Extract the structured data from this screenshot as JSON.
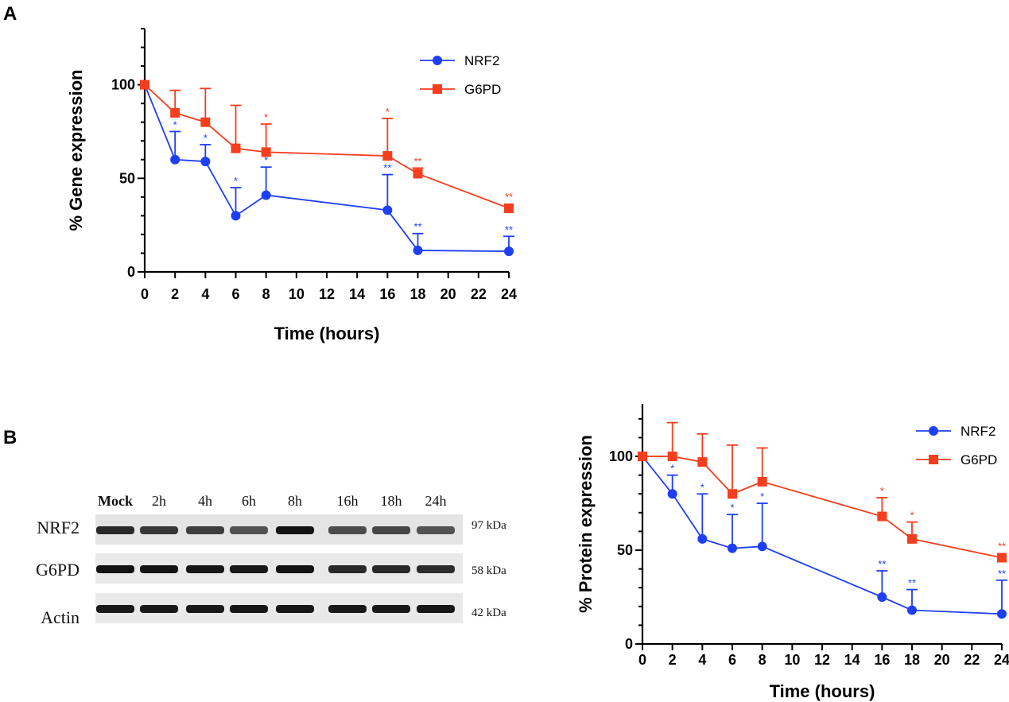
{
  "panels": {
    "a": "A",
    "b": "B"
  },
  "chart_data": [
    {
      "type": "line",
      "xlabel": "Time (hours)",
      "ylabel": "% Gene expression",
      "xlim": [
        0,
        24
      ],
      "ylim": [
        0,
        130
      ],
      "xticks": [
        0,
        2,
        4,
        6,
        8,
        10,
        12,
        14,
        16,
        18,
        20,
        22,
        24
      ],
      "yticks_major": [
        0,
        50,
        100
      ],
      "legend_position": "top-right",
      "series": [
        {
          "name": "NRF2",
          "color": "#1f3ff5",
          "marker": "circle",
          "x": [
            0,
            2,
            4,
            6,
            8,
            16,
            18,
            24
          ],
          "values": [
            100,
            60,
            59,
            30,
            41,
            33,
            11.5,
            11
          ],
          "err": [
            0,
            15,
            9,
            15,
            15,
            19,
            9,
            8
          ],
          "sig": [
            "",
            "*",
            "*",
            "*",
            "*",
            "**",
            "**",
            "**"
          ]
        },
        {
          "name": "G6PD",
          "color": "#f53e1e",
          "marker": "square",
          "x": [
            0,
            2,
            4,
            6,
            8,
            16,
            18,
            24
          ],
          "values": [
            100,
            85,
            80,
            66,
            64,
            62,
            52.5,
            34
          ],
          "err": [
            0,
            12,
            18,
            23,
            15,
            20,
            3,
            0
          ],
          "sig": [
            "",
            "",
            "",
            "",
            "*",
            "*",
            "**",
            "**"
          ]
        }
      ]
    },
    {
      "type": "line",
      "xlabel": "Time (hours)",
      "ylabel": "% Protein expression",
      "xlim": [
        0,
        24
      ],
      "ylim": [
        0,
        128
      ],
      "xticks": [
        0,
        2,
        4,
        6,
        8,
        10,
        12,
        14,
        16,
        18,
        20,
        22,
        24
      ],
      "yticks_major": [
        0,
        50,
        100
      ],
      "legend_position": "top-right",
      "series": [
        {
          "name": "NRF2",
          "color": "#1f3ff5",
          "marker": "circle",
          "x": [
            0,
            2,
            4,
            6,
            8,
            16,
            18,
            24
          ],
          "values": [
            100,
            80,
            56,
            51,
            52,
            25,
            18,
            16
          ],
          "err": [
            0,
            10,
            24,
            18,
            23,
            14,
            11,
            18
          ],
          "sig": [
            "",
            "*",
            "*",
            "*",
            "*",
            "**",
            "**",
            "**"
          ]
        },
        {
          "name": "G6PD",
          "color": "#f53e1e",
          "marker": "square",
          "x": [
            0,
            2,
            4,
            6,
            8,
            16,
            18,
            24
          ],
          "values": [
            100,
            100,
            97,
            80,
            86.5,
            68,
            56,
            46
          ],
          "err": [
            0,
            18,
            15,
            26,
            18,
            10,
            9,
            0
          ],
          "sig": [
            "",
            "",
            "",
            "",
            "",
            "*",
            "*",
            "**"
          ]
        }
      ]
    }
  ],
  "blot": {
    "lanes": [
      "Mock",
      "2h",
      "4h",
      "6h",
      "8h",
      "16h",
      "18h",
      "24h"
    ],
    "rows": [
      {
        "label": "NRF2",
        "kda": "97 kDa",
        "intensity": [
          0.8,
          0.7,
          0.65,
          0.5,
          0.95,
          0.55,
          0.6,
          0.5
        ]
      },
      {
        "label": "G6PD",
        "kda": "58 kDa",
        "intensity": [
          0.95,
          0.95,
          0.92,
          0.9,
          0.95,
          0.8,
          0.8,
          0.78
        ]
      },
      {
        "label": "Actin",
        "kda": "42 kDa",
        "intensity": [
          0.9,
          0.9,
          0.9,
          0.92,
          0.92,
          0.9,
          0.9,
          0.92
        ]
      }
    ]
  }
}
